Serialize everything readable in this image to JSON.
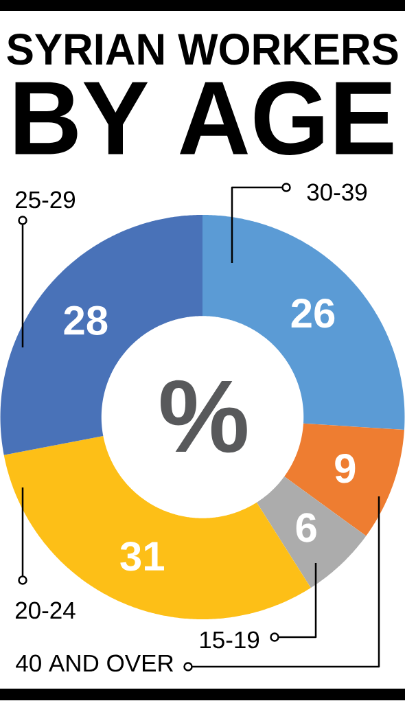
{
  "chart_data": {
    "type": "donut",
    "title": "SYRIAN WORKERS",
    "subtitle": "BY AGE",
    "categories": [
      "30-39",
      "40 AND OVER",
      "15-19",
      "20-24",
      "25-29"
    ],
    "values": [
      26,
      9,
      6,
      31,
      28
    ],
    "colors": [
      "#5b9bd5",
      "#ee7d31",
      "#acacac",
      "#fdbf17",
      "#4972b8"
    ],
    "data_labels": true,
    "annotations": [
      "%"
    ]
  }
}
